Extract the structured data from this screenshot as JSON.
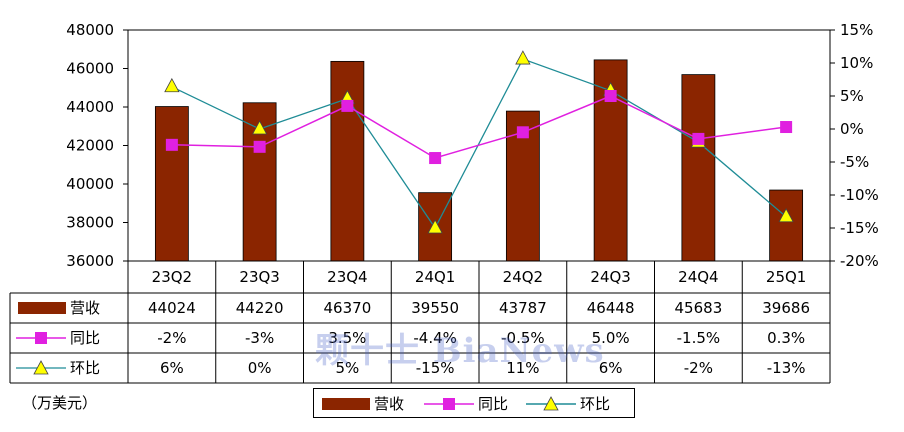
{
  "chart_data": {
    "type": "bar+line",
    "categories": [
      "23Q2",
      "23Q3",
      "23Q4",
      "24Q1",
      "24Q2",
      "24Q3",
      "24Q4",
      "25Q1"
    ],
    "unit_label": "（万美元）",
    "left_axis": {
      "ylim": [
        36000,
        48000
      ],
      "ticks": [
        "36000",
        "38000",
        "40000",
        "42000",
        "44000",
        "46000",
        "48000"
      ]
    },
    "right_axis": {
      "ylim": [
        -20,
        15
      ],
      "ticks": [
        "-20%",
        "-15%",
        "-10%",
        "-5%",
        "0%",
        "5%",
        "10%",
        "15%"
      ]
    },
    "series": [
      {
        "name": "营收",
        "kind": "bar",
        "axis": "left",
        "color": "#8B2500",
        "values": [
          44024,
          44220,
          46370,
          39550,
          43787,
          46448,
          45683,
          39686
        ],
        "labels": [
          "44024",
          "44220",
          "46370",
          "39550",
          "43787",
          "46448",
          "45683",
          "39686"
        ]
      },
      {
        "name": "同比",
        "kind": "line",
        "axis": "right",
        "color": "#E020E0",
        "marker": "square",
        "values": [
          -2.4,
          -2.7,
          3.5,
          -4.4,
          -0.5,
          5.0,
          -1.5,
          0.3
        ],
        "labels": [
          "-2%",
          "-3%",
          "3.5%",
          "-4.4%",
          "-0.5%",
          "5.0%",
          "-1.5%",
          "0.3%"
        ]
      },
      {
        "name": "环比",
        "kind": "line",
        "axis": "right",
        "color": "#1F8C96",
        "marker": "triangle",
        "marker_color": "#FFFF00",
        "values": [
          6.4,
          0.0,
          4.6,
          -15.0,
          10.6,
          5.8,
          -2.0,
          -13.3
        ],
        "labels": [
          "6%",
          "0%",
          "5%",
          "-15%",
          "11%",
          "6%",
          "-2%",
          "-13%"
        ]
      }
    ],
    "grid": false,
    "legend_position": "bottom",
    "data_table": true
  },
  "watermark": "颗十士 BiaNews"
}
